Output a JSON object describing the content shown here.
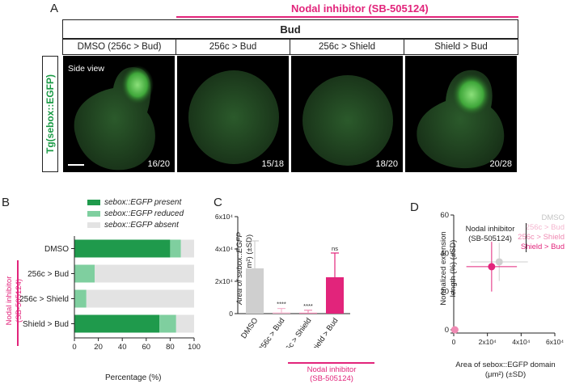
{
  "panel_a": {
    "letter": "A",
    "inhibitor_header": "Nodal inhibitor (SB-505124)",
    "stage_header": "Bud",
    "columns": [
      "DMSO (256c > Bud)",
      "256c > Bud",
      "256c > Shield",
      "Shield > Bud"
    ],
    "counts": [
      "16/20",
      "15/18",
      "18/20",
      "20/28"
    ],
    "side_view": "Side view",
    "row_label": "Tg(sebox::EGFP)"
  },
  "panel_b": {
    "letter": "B",
    "legend": [
      "sebox::EGFP present",
      "sebox::EGFP reduced",
      "sebox::EGFP absent"
    ],
    "group_label_line1": "Nodal inhibitor",
    "group_label_line2": "(SB-505124)",
    "xlabel": "Percentage (%)"
  },
  "panel_c": {
    "letter": "C",
    "ylabel_line1": "Area of sebox::EGFP",
    "ylabel_line2": "domain (μm²) (±SD)",
    "sig": [
      "****",
      "****",
      "ns"
    ],
    "group_label_line1": "Nodal inhibitor",
    "group_label_line2": "(SB-505124)"
  },
  "panel_d": {
    "letter": "D",
    "ylabel_line1": "Normalized extension",
    "ylabel_line2": "length (%) (±SD)",
    "xlabel_line1": "Area of sebox::EGFP domain",
    "xlabel_line2": "(μm²) (±SD)",
    "legend_dmso": "DMSO",
    "legend_group_line1": "Nodal inhibitor",
    "legend_group_line2": "(SB-505124)",
    "legend_items": [
      "256c > Bud",
      "256c > Shield",
      "Shield > Bud"
    ]
  },
  "colors": {
    "present": "#1f9a4c",
    "reduced": "#7fcf9f",
    "absent": "#e3e3e3",
    "dmso": "#cfcfcf",
    "magenta": "#e2247b",
    "light_pink": "#f5b6cf",
    "mid_pink": "#ef8ab3"
  },
  "chart_data": [
    {
      "type": "bar",
      "orientation": "horizontal",
      "stacked": true,
      "categories": [
        "DMSO",
        "256c > Bud",
        "256c > Shield",
        "Shield > Bud"
      ],
      "series": [
        {
          "name": "sebox::EGFP present",
          "values": [
            80,
            0,
            0,
            71
          ]
        },
        {
          "name": "sebox::EGFP reduced",
          "values": [
            9,
            17,
            10,
            14
          ]
        },
        {
          "name": "sebox::EGFP absent",
          "values": [
            11,
            83,
            90,
            15
          ]
        }
      ],
      "xlim": [
        0,
        100
      ],
      "xticks": [
        "0",
        "20",
        "40",
        "60",
        "80",
        "100"
      ],
      "xlabel": "Percentage (%)"
    },
    {
      "type": "bar",
      "categories": [
        "DMSO",
        "256c > Bud",
        "256c > Shield",
        "Shield > Bud"
      ],
      "values": [
        28000,
        700,
        600,
        22500
      ],
      "errors": [
        17000,
        2500,
        1500,
        15000
      ],
      "ylim": [
        0,
        60000
      ],
      "yticks": [
        "0",
        "2x10⁴",
        "4x10⁴",
        "6x10⁴"
      ]
    },
    {
      "type": "scatter",
      "series": [
        {
          "name": "DMSO",
          "x": [
            27000
          ],
          "y": [
            35.5
          ],
          "xerr": [
            17000
          ],
          "yerr": [
            10
          ]
        },
        {
          "name": "256c > Bud",
          "x": [
            700
          ],
          "y": [
            0
          ],
          "xerr": [
            1500
          ],
          "yerr": [
            1
          ]
        },
        {
          "name": "256c > Shield",
          "x": [
            600
          ],
          "y": [
            0
          ],
          "xerr": [
            1000
          ],
          "yerr": [
            1
          ]
        },
        {
          "name": "Shield > Bud",
          "x": [
            22500
          ],
          "y": [
            33
          ],
          "xerr": [
            15000
          ],
          "yerr": [
            13
          ]
        }
      ],
      "xlim": [
        0,
        60000
      ],
      "ylim": [
        0,
        60
      ],
      "xticks": [
        "0",
        "2x10⁴",
        "4x10⁴",
        "6x10⁴"
      ],
      "yticks": [
        "0",
        "20",
        "40",
        "60"
      ]
    }
  ]
}
